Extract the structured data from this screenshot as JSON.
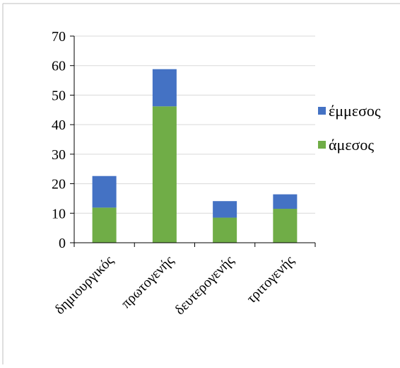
{
  "chart_data": {
    "type": "bar",
    "stacked": true,
    "title": "",
    "xlabel": "",
    "ylabel": "",
    "categories": [
      "δημιουργικός",
      "πρωτογενής",
      "δευτερογενής",
      "τριτογενής"
    ],
    "series": [
      {
        "name": "άμεσος",
        "color": "#70ad47",
        "values": [
          11.9,
          46.2,
          8.5,
          11.5
        ]
      },
      {
        "name": "έμμεσος",
        "color": "#4472c4",
        "values": [
          10.7,
          12.6,
          5.6,
          4.9
        ]
      }
    ],
    "ylim": [
      0,
      70
    ],
    "yticks": [
      0,
      10,
      20,
      30,
      40,
      50,
      60,
      70
    ],
    "grid": true,
    "legend": "right"
  }
}
